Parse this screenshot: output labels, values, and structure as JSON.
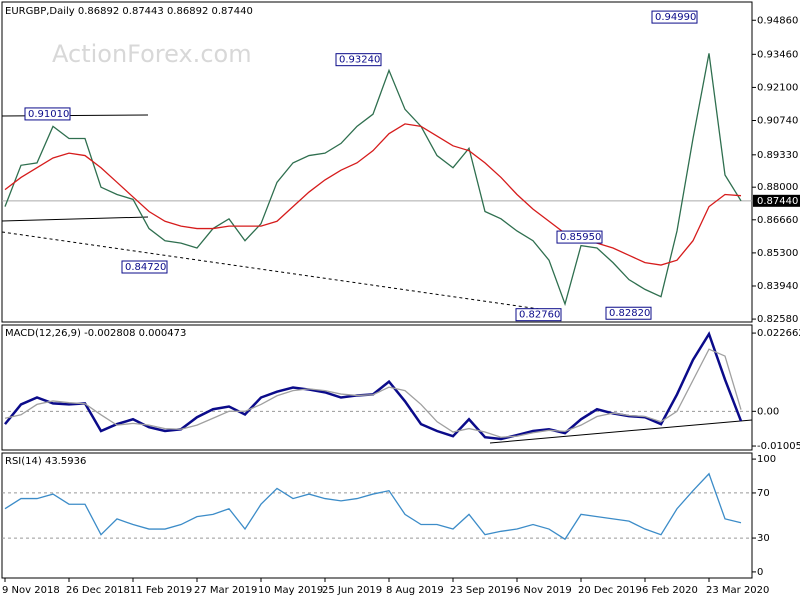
{
  "chart_data": [
    {
      "type": "line",
      "header": "EURGBP,Daily  0.86892 0.87443 0.86892 0.87440",
      "watermark": "ActionForex.com",
      "ylim": [
        0.8246,
        0.9561
      ],
      "yticks": [
        {
          "value": 0.9486,
          "label": "0.94860"
        },
        {
          "value": 0.9346,
          "label": "0.93460"
        },
        {
          "value": 0.921,
          "label": "0.92100"
        },
        {
          "value": 0.9074,
          "label": "0.90740"
        },
        {
          "value": 0.8933,
          "label": "0.89330"
        },
        {
          "value": 0.88,
          "label": "0.88000"
        },
        {
          "value": 0.8666,
          "label": "0.86660"
        },
        {
          "value": 0.853,
          "label": "0.85300"
        },
        {
          "value": 0.8394,
          "label": "0.83940"
        },
        {
          "value": 0.8258,
          "label": "0.82580"
        }
      ],
      "current": {
        "value": 0.8744,
        "label": "0.87440"
      },
      "annotations": [
        {
          "value": 0.9101,
          "label": "0.91010"
        },
        {
          "value": 0.9324,
          "label": "0.93240"
        },
        {
          "value": 0.9499,
          "label": "0.94990"
        },
        {
          "value": 0.8472,
          "label": "0.84720"
        },
        {
          "value": 0.8276,
          "label": "0.82760"
        },
        {
          "value": 0.8282,
          "label": "0.82820"
        },
        {
          "value": 0.8595,
          "label": "0.85950"
        }
      ],
      "series": [
        {
          "color": "#2f6f4f",
          "values": [
            0.872,
            0.889,
            0.89,
            0.905,
            0.9,
            0.9,
            0.88,
            0.877,
            0.875,
            0.863,
            0.858,
            0.857,
            0.855,
            0.863,
            0.867,
            0.858,
            0.865,
            0.882,
            0.89,
            0.893,
            0.894,
            0.898,
            0.905,
            0.91,
            0.928,
            0.912,
            0.905,
            0.893,
            0.888,
            0.896,
            0.87,
            0.867,
            0.862,
            0.858,
            0.85,
            0.832,
            0.856,
            0.855,
            0.849,
            0.842,
            0.838,
            0.835,
            0.862,
            0.9,
            0.935,
            0.885,
            0.8744
          ]
        },
        {
          "color": "#d61c1c",
          "values": [
            0.879,
            0.884,
            0.888,
            0.892,
            0.894,
            0.893,
            0.888,
            0.882,
            0.876,
            0.87,
            0.866,
            0.864,
            0.863,
            0.863,
            0.864,
            0.864,
            0.864,
            0.866,
            0.872,
            0.878,
            0.883,
            0.887,
            0.89,
            0.895,
            0.902,
            0.906,
            0.905,
            0.901,
            0.897,
            0.895,
            0.89,
            0.884,
            0.877,
            0.871,
            0.866,
            0.861,
            0.859,
            0.857,
            0.855,
            0.852,
            0.849,
            0.848,
            0.85,
            0.858,
            0.872,
            0.877,
            0.8765
          ]
        }
      ]
    },
    {
      "type": "line",
      "title": "MACD(12,26,9) -0.002808 0.000473",
      "ylim": [
        -0.0112,
        0.025
      ],
      "yticks": [
        0.022662,
        {
          "value": 0,
          "label": "0.00"
        },
        -0.010052
      ],
      "series": [
        {
          "color": "#0b0b8a",
          "values": [
            -0.0037,
            0.002,
            0.004,
            0.0023,
            0.002,
            0.0023,
            -0.0057,
            -0.0037,
            -0.0023,
            -0.0046,
            -0.0057,
            -0.0052,
            -0.0017,
            0.0006,
            0.0014,
            -0.0009,
            0.004,
            0.0057,
            0.0069,
            0.0063,
            0.0055,
            0.004,
            0.0046,
            0.0049,
            0.0086,
            0.0029,
            -0.0037,
            -0.0057,
            -0.0072,
            -0.0023,
            -0.0075,
            -0.008,
            -0.0069,
            -0.0057,
            -0.0052,
            -0.0063,
            -0.0023,
            0.0006,
            -0.0006,
            -0.0014,
            -0.0017,
            -0.0037,
            0.0049,
            0.0149,
            0.0224,
            0.0092,
            -0.002808
          ]
        },
        {
          "color": "#a0a0a0",
          "values": [
            -0.002,
            -0.001,
            0.002,
            0.003,
            0.0025,
            0.0022,
            -0.001,
            -0.004,
            -0.0035,
            -0.004,
            -0.005,
            -0.0052,
            -0.004,
            -0.002,
            0,
            0,
            0.002,
            0.0045,
            0.006,
            0.0065,
            0.006,
            0.005,
            0.0046,
            0.0048,
            0.007,
            0.006,
            0.002,
            -0.003,
            -0.006,
            -0.005,
            -0.006,
            -0.0075,
            -0.0072,
            -0.0062,
            -0.0055,
            -0.0058,
            -0.004,
            -0.0015,
            -0.0005,
            -0.0012,
            -0.0015,
            -0.003,
            0,
            0.009,
            0.018,
            0.016,
            0.000473
          ]
        }
      ]
    },
    {
      "type": "line",
      "title": "RSI(14) 43.5936",
      "ylim": [
        -5.4,
        105.4
      ],
      "yticks": [
        100,
        70,
        30,
        0
      ],
      "levels": [
        70,
        30
      ],
      "categories": [
        "9 Nov 2018",
        null,
        null,
        null,
        "26 Dec 2018",
        null,
        null,
        null,
        "11 Feb 2019",
        null,
        null,
        null,
        "27 Mar 2019",
        null,
        null,
        null,
        "10 May 2019",
        null,
        null,
        null,
        "25 Jun 2019",
        null,
        null,
        null,
        "8 Aug 2019",
        null,
        null,
        null,
        "23 Sep 2019",
        null,
        null,
        null,
        "6 Nov 2019",
        null,
        null,
        null,
        "20 Dec 2019",
        null,
        null,
        null,
        "6 Feb 2020",
        null,
        null,
        null,
        "23 Mar 2020",
        null,
        null
      ],
      "series": [
        {
          "color": "#3c8cc8",
          "values": [
            56,
            65,
            65,
            69,
            60,
            60,
            33,
            47,
            42,
            38,
            38,
            42,
            49,
            51,
            56,
            38,
            60,
            74,
            65,
            69,
            65,
            63,
            65,
            69,
            72,
            51,
            42,
            42,
            38,
            51,
            33,
            36,
            38,
            42,
            38,
            29,
            51,
            49,
            47,
            45,
            38,
            33,
            56,
            72,
            87,
            47,
            43.5936
          ]
        }
      ]
    }
  ]
}
